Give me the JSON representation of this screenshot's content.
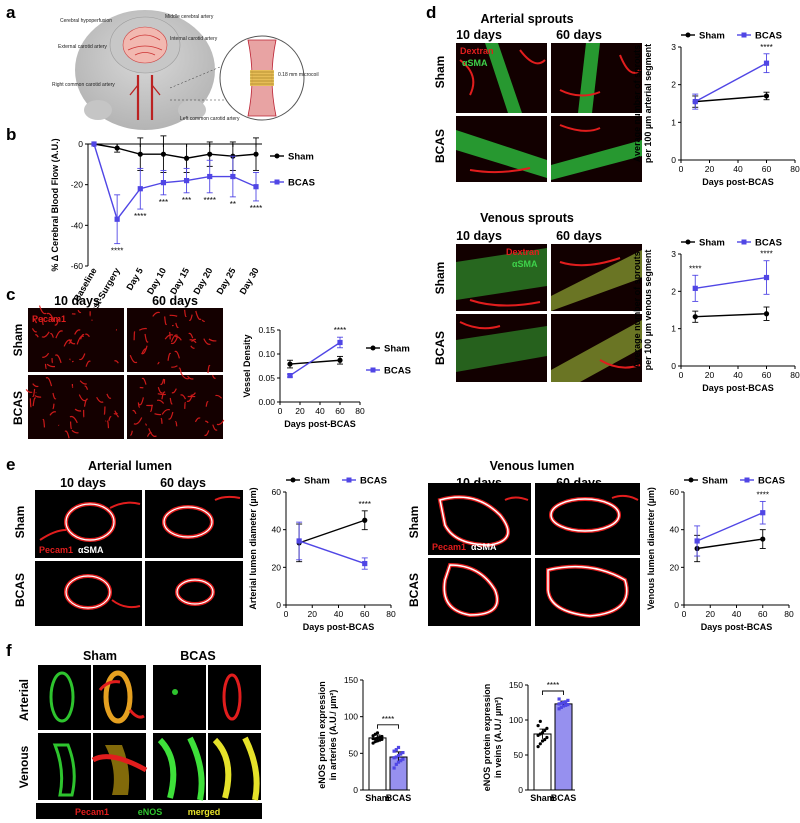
{
  "panels": {
    "a": {
      "letter": "a",
      "labels": [
        "Cerebral hypoperfusion",
        "Middle cerebral artery",
        "Internal carotid artery",
        "External carotid artery",
        "Right common carotid artery",
        "Left common carotid artery",
        "0.18 mm microcoil"
      ]
    },
    "b": {
      "letter": "b"
    },
    "c": {
      "letter": "c",
      "col_10": "10 days",
      "col_60": "60 days",
      "row_sham": "Sham",
      "row_bcas": "BCAS",
      "stain": "Pecam1"
    },
    "d": {
      "letter": "d",
      "arterial_title": "Arterial sprouts",
      "venous_title": "Venous sprouts",
      "col_10": "10 days",
      "col_60": "60 days",
      "row_sham": "Sham",
      "row_bcas": "BCAS",
      "stain1": "Dextran",
      "stain2": "αSMA"
    },
    "e": {
      "letter": "e",
      "arterial_title": "Arterial lumen",
      "venous_title": "Venous lumen",
      "col_10": "10 days",
      "col_60": "60 days",
      "row_sham": "Sham",
      "row_bcas": "BCAS",
      "stain1": "Pecam1",
      "stain2": "αSMA"
    },
    "f": {
      "letter": "f",
      "col_sham": "Sham",
      "col_bcas": "BCAS",
      "row_art": "Arterial",
      "row_ven": "Venous",
      "legend1": "Pecam1",
      "legend2": "eNOS",
      "legend3": "merged"
    }
  },
  "colors": {
    "sham": "#000000",
    "bcas": "#5046e5",
    "red": "#e11d1d",
    "green": "#29c42f"
  },
  "chart_data": [
    {
      "id": "b",
      "type": "line",
      "ylabel": "% Δ Cerebral Blood Flow (A.U.)",
      "categories": [
        "Baseline",
        "Post-Surgery",
        "Day 5",
        "Day 10",
        "Day 15",
        "Day 20",
        "Day 25",
        "Day 30"
      ],
      "ylim": [
        -60,
        0
      ],
      "yticks": [
        0,
        -20,
        -40,
        -60
      ],
      "legend": [
        "Sham",
        "BCAS"
      ],
      "series": [
        {
          "name": "Sham",
          "values": [
            0,
            -2,
            -5,
            -5,
            -7,
            -5,
            -6,
            -5
          ],
          "err": [
            0,
            2,
            8,
            9,
            7,
            6,
            7,
            8
          ]
        },
        {
          "name": "BCAS",
          "values": [
            0,
            -37,
            -22,
            -19,
            -18,
            -16,
            -16,
            -21
          ],
          "err": [
            0,
            12,
            10,
            6,
            6,
            8,
            10,
            7
          ]
        }
      ],
      "annotations": [
        "****",
        "****",
        "***",
        "***",
        "****",
        "**",
        "****"
      ]
    },
    {
      "id": "c",
      "type": "line",
      "xlabel": "Days post-BCAS",
      "ylabel": "Vessel Density",
      "x": [
        10,
        60
      ],
      "xlim": [
        0,
        80
      ],
      "xticks": [
        0,
        20,
        40,
        60,
        80
      ],
      "ylim": [
        0.0,
        0.15
      ],
      "yticks": [
        0.0,
        0.05,
        0.1,
        0.15
      ],
      "yticklabels": [
        "0.00",
        "0.05",
        "0.10",
        "0.15"
      ],
      "series": [
        {
          "name": "Sham",
          "values": [
            0.079,
            0.087
          ],
          "err": [
            0.008,
            0.008
          ]
        },
        {
          "name": "BCAS",
          "values": [
            0.055,
            0.124
          ],
          "err": [
            0.003,
            0.011
          ]
        }
      ],
      "annotations": [
        "****"
      ]
    },
    {
      "id": "d1",
      "type": "line",
      "xlabel": "Days post-BCAS",
      "ylabel": [
        "Average number of sprouts",
        "per 100 µm arterial segment"
      ],
      "x": [
        10,
        60
      ],
      "xlim": [
        0,
        80
      ],
      "xticks": [
        0,
        20,
        40,
        60,
        80
      ],
      "ylim": [
        0,
        3
      ],
      "yticks": [
        0,
        1,
        2,
        3
      ],
      "series": [
        {
          "name": "Sham",
          "values": [
            1.55,
            1.7
          ],
          "err": [
            0.15,
            0.1
          ]
        },
        {
          "name": "BCAS",
          "values": [
            1.55,
            2.57
          ],
          "err": [
            0.2,
            0.25
          ]
        }
      ],
      "annotations": [
        "****"
      ]
    },
    {
      "id": "d2",
      "type": "line",
      "xlabel": "Days post-BCAS",
      "ylabel": [
        "Average number of sprouts",
        "per 100 µm venous segment"
      ],
      "x": [
        10,
        60
      ],
      "xlim": [
        0,
        80
      ],
      "xticks": [
        0,
        20,
        40,
        60,
        80
      ],
      "ylim": [
        0,
        3
      ],
      "yticks": [
        0,
        1,
        2,
        3
      ],
      "series": [
        {
          "name": "Sham",
          "values": [
            1.32,
            1.4
          ],
          "err": [
            0.15,
            0.18
          ]
        },
        {
          "name": "BCAS",
          "values": [
            2.08,
            2.37
          ],
          "err": [
            0.35,
            0.45
          ]
        }
      ],
      "annotations": [
        "****",
        "****"
      ]
    },
    {
      "id": "e1",
      "type": "line",
      "xlabel": "Days post-BCAS",
      "ylabel": "Arterial lumen diameter (µm)",
      "x": [
        10,
        60
      ],
      "xlim": [
        0,
        80
      ],
      "xticks": [
        0,
        20,
        40,
        60,
        80
      ],
      "ylim": [
        0,
        60
      ],
      "yticks": [
        0,
        20,
        40,
        60
      ],
      "series": [
        {
          "name": "Sham",
          "values": [
            33,
            45
          ],
          "err": [
            10,
            5
          ]
        },
        {
          "name": "BCAS",
          "values": [
            34,
            22
          ],
          "err": [
            10,
            3
          ]
        }
      ],
      "annotations": [
        "****"
      ]
    },
    {
      "id": "e2",
      "type": "line",
      "xlabel": "Days post-BCAS",
      "ylabel": "Venous lumen diameter (µm)",
      "x": [
        10,
        60
      ],
      "xlim": [
        0,
        80
      ],
      "xticks": [
        0,
        20,
        40,
        60,
        80
      ],
      "ylim": [
        0,
        60
      ],
      "yticks": [
        0,
        20,
        40,
        60
      ],
      "series": [
        {
          "name": "Sham",
          "values": [
            30,
            35
          ],
          "err": [
            7,
            5
          ]
        },
        {
          "name": "BCAS",
          "values": [
            34,
            49
          ],
          "err": [
            8,
            6
          ]
        }
      ],
      "annotations": [
        "****"
      ]
    },
    {
      "id": "f1",
      "type": "bar",
      "categories": [
        "Sham",
        "BCAS"
      ],
      "ylabel": [
        "eNOS protein expression",
        "in arteries (A.U./ µm²)"
      ],
      "ylim": [
        0,
        150
      ],
      "yticks": [
        0,
        50,
        100,
        150
      ],
      "values": [
        71,
        45
      ],
      "err": [
        4,
        7
      ],
      "points": [
        [
          64,
          66,
          67,
          68,
          69,
          70,
          70,
          71,
          72,
          73,
          74,
          76,
          78
        ],
        [
          30,
          35,
          38,
          40,
          42,
          44,
          45,
          47,
          49,
          51,
          53,
          55,
          58
        ]
      ],
      "annotations": [
        "****"
      ]
    },
    {
      "id": "f2",
      "type": "bar",
      "categories": [
        "Sham",
        "BCAS"
      ],
      "ylabel": [
        "eNOS protein expression",
        "in veins (A.U./ µm²)"
      ],
      "ylim": [
        0,
        150
      ],
      "yticks": [
        0,
        50,
        100,
        150
      ],
      "values": [
        80,
        123
      ],
      "err": [
        7,
        4
      ],
      "points": [
        [
          62,
          66,
          70,
          72,
          75,
          78,
          80,
          82,
          85,
          88,
          92,
          98
        ],
        [
          116,
          118,
          120,
          121,
          122,
          123,
          124,
          125,
          126,
          128,
          130
        ]
      ],
      "annotations": [
        "****"
      ]
    }
  ]
}
